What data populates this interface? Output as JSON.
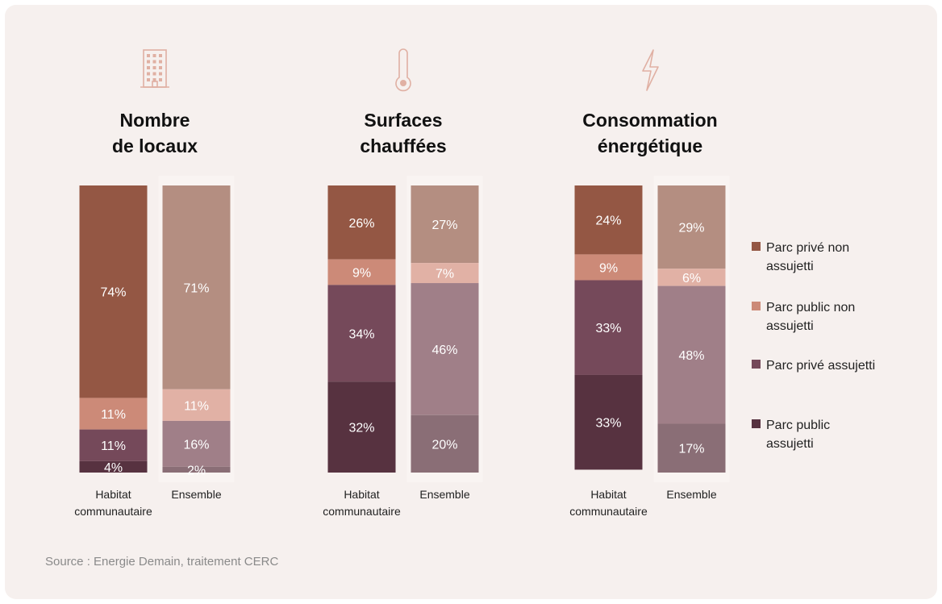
{
  "source": "Source : Energie Demain, traitement CERC",
  "colors": {
    "hab": [
      "#945744",
      "#cc8a78",
      "#75495a",
      "#573240"
    ],
    "ens": [
      "#b48e81",
      "#e1b1a5",
      "#a07f88",
      "#8a6e76"
    ],
    "icon": "#e0b0a3",
    "background": "#f6f0ee"
  },
  "legend": [
    {
      "lines": [
        "Parc privé non",
        "assujetti"
      ],
      "color": "#945744"
    },
    {
      "lines": [
        "Parc public non",
        "assujetti"
      ],
      "color": "#cc8a78"
    },
    {
      "lines": [
        "Parc privé assujetti"
      ],
      "color": "#75495a"
    },
    {
      "lines": [
        "Parc public",
        "assujetti"
      ],
      "color": "#573240"
    }
  ],
  "chart_data": [
    {
      "type": "bar",
      "stacked": true,
      "icon": "building-icon",
      "title_lines": [
        "Nombre",
        "de locaux"
      ],
      "categories": [
        [
          "Habitat",
          "communautaire"
        ],
        [
          "Ensemble"
        ]
      ],
      "series": [
        {
          "name": "Parc privé non assujetti",
          "values": [
            74,
            71
          ]
        },
        {
          "name": "Parc public non assujetti",
          "values": [
            11,
            11
          ]
        },
        {
          "name": "Parc privé assujetti",
          "values": [
            11,
            16
          ]
        },
        {
          "name": "Parc public assujetti",
          "values": [
            4,
            2
          ]
        }
      ],
      "ylim": [
        0,
        100
      ]
    },
    {
      "type": "bar",
      "stacked": true,
      "icon": "thermometer-icon",
      "title_lines": [
        "Surfaces",
        "chauffées"
      ],
      "categories": [
        [
          "Habitat",
          "communautaire"
        ],
        [
          "Ensemble"
        ]
      ],
      "series": [
        {
          "name": "Parc privé non assujetti",
          "values": [
            26,
            27
          ]
        },
        {
          "name": "Parc public non assujetti",
          "values": [
            9,
            7
          ]
        },
        {
          "name": "Parc privé assujetti",
          "values": [
            34,
            46
          ]
        },
        {
          "name": "Parc public assujetti",
          "values": [
            32,
            20
          ]
        }
      ],
      "ylim": [
        0,
        100
      ]
    },
    {
      "type": "bar",
      "stacked": true,
      "icon": "lightning-icon",
      "title_lines": [
        "Consommation",
        "énergétique"
      ],
      "categories": [
        [
          "Habitat",
          "communautaire"
        ],
        [
          "Ensemble"
        ]
      ],
      "series": [
        {
          "name": "Parc privé non assujetti",
          "values": [
            24,
            29
          ]
        },
        {
          "name": "Parc public non assujetti",
          "values": [
            9,
            6
          ]
        },
        {
          "name": "Parc privé assujetti",
          "values": [
            33,
            48
          ]
        },
        {
          "name": "Parc public assujetti",
          "values": [
            33,
            17
          ]
        }
      ],
      "ylim": [
        0,
        100
      ]
    }
  ]
}
